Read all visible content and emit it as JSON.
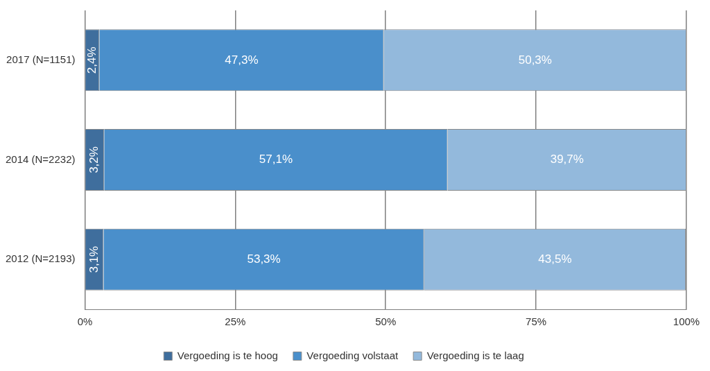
{
  "chart_data": {
    "type": "bar",
    "orientation": "horizontal",
    "stacked": true,
    "data_labels": true,
    "grid": true,
    "legend": "bottom",
    "categories": [
      "2017 (N=1151)",
      "2014 (N=2232)",
      "2012 (N=2193)"
    ],
    "series": [
      {
        "name": "Vergoeding is te hoog",
        "color": "#3f6e9d",
        "values": [
          2.4,
          3.2,
          3.1
        ],
        "value_labels": [
          "2,4%",
          "3,2%",
          "3,1%"
        ]
      },
      {
        "name": "Vergoeding volstaat",
        "color": "#4a8fcb",
        "values": [
          47.3,
          57.1,
          53.3
        ],
        "value_labels": [
          "47,3%",
          "57,1%",
          "53,3%"
        ]
      },
      {
        "name": "Vergoeding is te laag",
        "color": "#93b9dc",
        "values": [
          50.3,
          39.7,
          43.5
        ],
        "value_labels": [
          "50,3%",
          "39,7%",
          "43,5%"
        ]
      }
    ],
    "xlim": [
      0,
      100
    ],
    "xticks": [
      {
        "value": 0,
        "label": "0%"
      },
      {
        "value": 25,
        "label": "25%"
      },
      {
        "value": 50,
        "label": "50%"
      },
      {
        "value": 75,
        "label": "75%"
      },
      {
        "value": 100,
        "label": "100%"
      }
    ]
  }
}
